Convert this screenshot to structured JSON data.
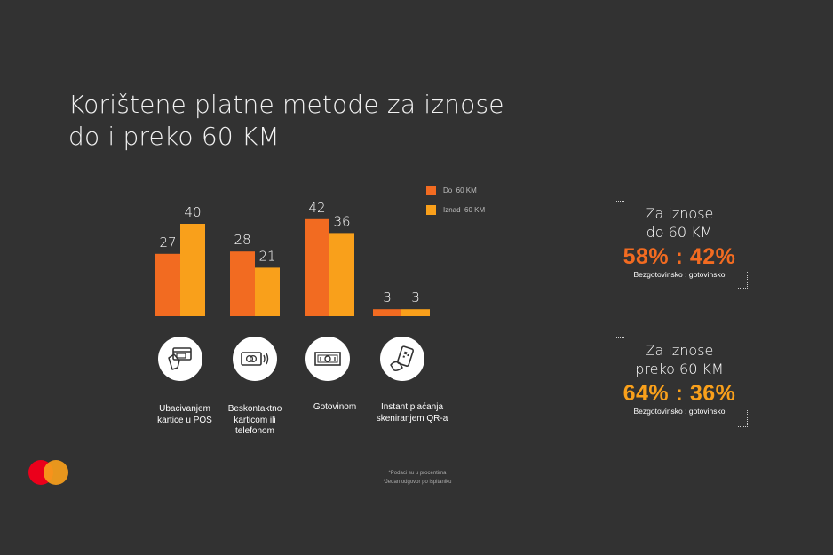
{
  "title": {
    "line1": "Korištene platne metode za iznose",
    "line2": "do i preko 60 KM"
  },
  "colors": {
    "series_do": "#f26b21",
    "series_iznad": "#f9a01b",
    "background": "#323232"
  },
  "chart_data": {
    "type": "bar",
    "categories": [
      "Ubacivanjem kartice u POS",
      "Beskontaktno karticom ili telefonom",
      "Gotovinom",
      "Instant plaćanja skeniranjem QR-a"
    ],
    "series": [
      {
        "name": "Do  60 KM",
        "values": [
          27,
          28,
          42,
          3
        ]
      },
      {
        "name": "Iznad  60 KM",
        "values": [
          40,
          21,
          36,
          3
        ]
      }
    ],
    "ylim": [
      0,
      45
    ],
    "grid": false,
    "legend_position": "top-right"
  },
  "categories_display": [
    {
      "lines": [
        "Ubacivanjem",
        "kartice u POS"
      ],
      "icon": "card-insert-icon"
    },
    {
      "lines": [
        "Beskontaktno",
        "karticom ili",
        "telefonom"
      ],
      "icon": "contactless-card-icon"
    },
    {
      "lines": [
        "Gotovinom"
      ],
      "icon": "cash-icon"
    },
    {
      "lines": [
        "Instant plaćanja",
        "skeniranjem QR-a"
      ],
      "icon": "qr-phone-icon"
    }
  ],
  "stats": [
    {
      "head1": "Za iznose",
      "head2": "do 60 KM",
      "ratio": "58% : 42%",
      "sub": "Bezgotovinsko : gotovinsko",
      "color": "#f26b21"
    },
    {
      "head1": "Za iznose",
      "head2": "preko 60 KM",
      "ratio": "64% : 36%",
      "sub": "Bezgotovinsko : gotovinsko",
      "color": "#f9a01b"
    }
  ],
  "footnotes": {
    "line1": "*Podaci su u procentima",
    "line2": "*Jedan odgovor po ispitaniku"
  },
  "logo": {
    "icon": "mastercard-logo-icon"
  }
}
